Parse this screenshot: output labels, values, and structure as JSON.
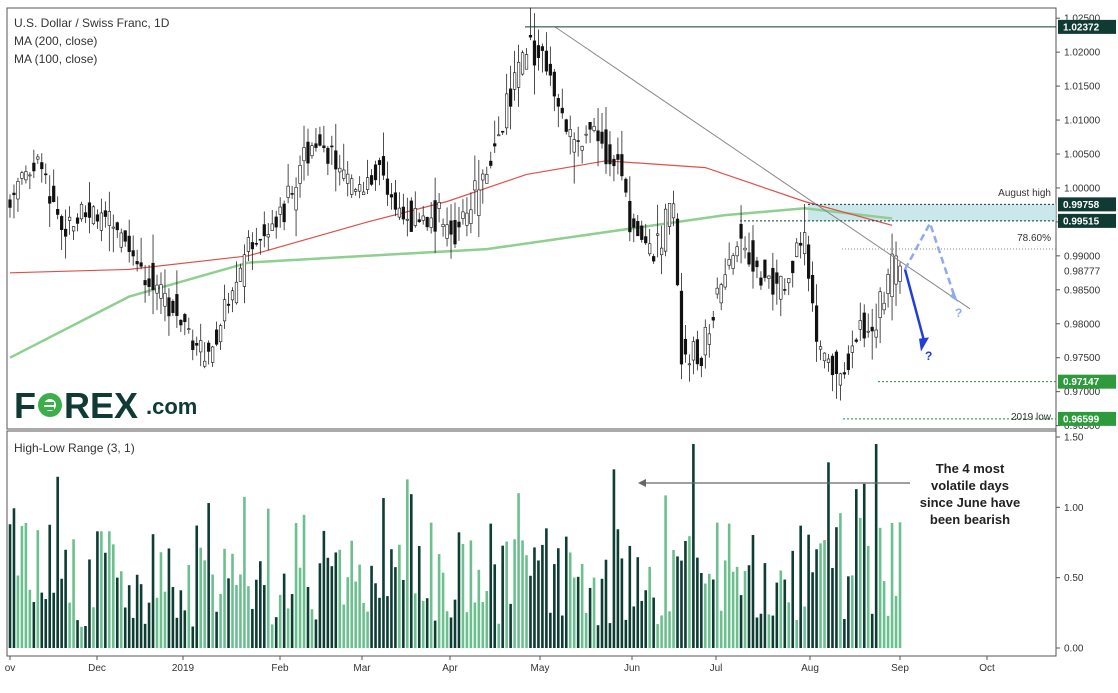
{
  "header": {
    "title": "U.S. Dollar / Swiss Franc, 1D",
    "ma1": "MA (200, close)",
    "ma2": "MA (100, close)"
  },
  "brand": {
    "logo_text": "FOREX.com"
  },
  "colors": {
    "bull": "#6cc08f",
    "bear": "#0d3d33",
    "ma200": "#8fcf8f",
    "ma100": "#e0504a",
    "zone": "#b8e0e6",
    "tag_dark": "#0f3b34",
    "arrow_blue": "#1f3fd8",
    "arrow_light": "#8faaf0"
  },
  "chart_data": [
    {
      "type": "candlestick",
      "title": "U.S. Dollar / Swiss Franc, 1D",
      "x_ticks": [
        "ov",
        "Dec",
        "2019",
        "Feb",
        "Mar",
        "Apr",
        "May",
        "Jun",
        "Jul",
        "Aug",
        "Sep",
        "Oct"
      ],
      "y_ticks": [
        "1.02500",
        "1.02000",
        "1.01500",
        "1.01000",
        "1.00500",
        "1.00000",
        "0.99500",
        "0.99000",
        "0.98500",
        "0.98000",
        "0.97500",
        "0.97000",
        "0.96500"
      ],
      "ylim": [
        0.9645,
        1.0265
      ],
      "ohlc_path": [
        [
          "2018-11-01",
          0.998
        ],
        [
          "2018-11-12",
          1.004
        ],
        [
          "2018-11-20",
          0.994
        ],
        [
          "2018-11-28",
          0.997
        ],
        [
          "2018-12-06",
          0.994
        ],
        [
          "2018-12-13",
          0.992
        ],
        [
          "2018-12-20",
          0.987
        ],
        [
          "2018-12-28",
          0.983
        ],
        [
          "2019-01-03",
          0.98
        ],
        [
          "2019-01-10",
          0.975
        ],
        [
          "2019-01-18",
          0.985
        ],
        [
          "2019-01-25",
          0.992
        ],
        [
          "2019-02-05",
          0.998
        ],
        [
          "2019-02-14",
          1.008
        ],
        [
          "2019-02-22",
          1.003
        ],
        [
          "2019-03-01",
          0.999
        ],
        [
          "2019-03-08",
          1.003
        ],
        [
          "2019-03-15",
          0.996
        ],
        [
          "2019-03-22",
          0.995
        ],
        [
          "2019-03-29",
          0.996
        ],
        [
          "2019-04-05",
          0.994
        ],
        [
          "2019-04-12",
          1.0
        ],
        [
          "2019-04-19",
          1.008
        ],
        [
          "2019-04-24",
          1.017
        ],
        [
          "2019-04-29",
          1.022
        ],
        [
          "2019-05-06",
          1.017
        ],
        [
          "2019-05-13",
          1.006
        ],
        [
          "2019-05-20",
          1.008
        ],
        [
          "2019-05-28",
          1.004
        ],
        [
          "2019-06-03",
          0.994
        ],
        [
          "2019-06-10",
          0.99
        ],
        [
          "2019-06-17",
          0.998
        ],
        [
          "2019-06-20",
          0.976
        ],
        [
          "2019-06-27",
          0.976
        ],
        [
          "2019-07-03",
          0.984
        ],
        [
          "2019-07-10",
          0.993
        ],
        [
          "2019-07-17",
          0.987
        ],
        [
          "2019-07-24",
          0.985
        ],
        [
          "2019-07-31",
          0.993
        ],
        [
          "2019-08-05",
          0.976
        ],
        [
          "2019-08-09",
          0.974
        ],
        [
          "2019-08-13",
          0.972
        ],
        [
          "2019-08-19",
          0.98
        ],
        [
          "2019-08-23",
          0.978
        ],
        [
          "2019-08-27",
          0.984
        ],
        [
          "2019-08-30",
          0.9878
        ]
      ],
      "series": [
        {
          "name": "MA (200, close)",
          "values": [
            [
              0,
              0.975
            ],
            [
              30,
              0.984
            ],
            [
              60,
              0.989
            ],
            [
              90,
              0.99
            ],
            [
              120,
              0.991
            ],
            [
              150,
              0.9935
            ],
            [
              180,
              0.996
            ],
            [
              200,
              0.997
            ],
            [
              222,
              0.9955
            ]
          ]
        },
        {
          "name": "MA (100, close)",
          "values": [
            [
              0,
              0.9875
            ],
            [
              30,
              0.988
            ],
            [
              60,
              0.99
            ],
            [
              90,
              0.995
            ],
            [
              110,
              0.998
            ],
            [
              130,
              1.002
            ],
            [
              150,
              1.004
            ],
            [
              175,
              1.003
            ],
            [
              200,
              0.998
            ],
            [
              222,
              0.9945
            ]
          ]
        }
      ],
      "levels": {
        "high_2019": 1.02372,
        "august_high": 0.99758,
        "zone_low": 0.99515,
        "current": 0.98777,
        "support": 0.97147,
        "low_2019": 0.96599
      },
      "price_tags": [
        "1.02372",
        "0.99758",
        "0.99515",
        "0.98777",
        "0.97147",
        "0.96599"
      ],
      "annotations": {
        "august_high": "August high",
        "fib": "78.60%",
        "low_2019": "2019 low",
        "q1": "?",
        "q2": "?"
      }
    },
    {
      "type": "bar",
      "title": "High-Low Range (3, 1)",
      "y_ticks": [
        "1.50",
        "1.00",
        "0.50",
        "0.00"
      ],
      "ylim": [
        0,
        1.5
      ],
      "highlight_values": [
        1.27,
        1.45,
        1.32,
        1.45
      ],
      "annotation": [
        "The 4 most",
        "volatile days",
        "since June have",
        "been bearish"
      ]
    }
  ]
}
